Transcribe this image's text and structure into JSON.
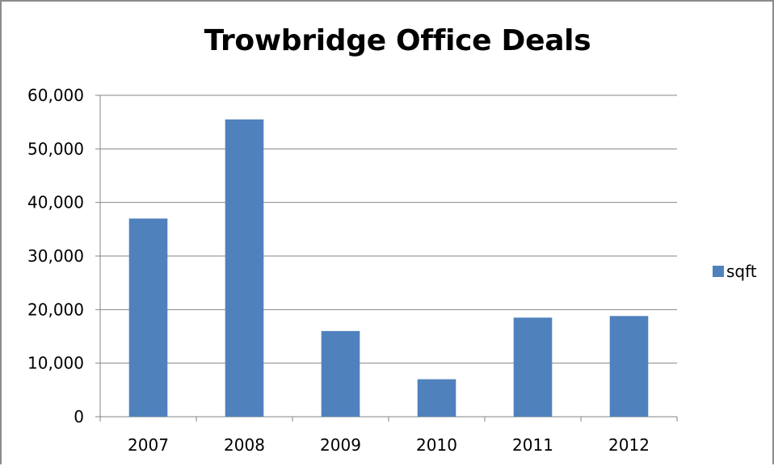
{
  "chart_data": {
    "type": "bar",
    "title": "Trowbridge Office Deals",
    "categories": [
      "2007",
      "2008",
      "2009",
      "2010",
      "2011",
      "2012"
    ],
    "series": [
      {
        "name": "sqft",
        "values": [
          37000,
          55500,
          16000,
          7000,
          18500,
          18800
        ],
        "color": "#4f81bd"
      }
    ],
    "ylim": [
      0,
      60000
    ],
    "yticks": [
      0,
      10000,
      20000,
      30000,
      40000,
      50000,
      60000
    ],
    "ytick_labels": [
      "0",
      "10,000",
      "20,000",
      "30,000",
      "40,000",
      "50,000",
      "60,000"
    ],
    "grid": true,
    "legend_position": "right"
  }
}
